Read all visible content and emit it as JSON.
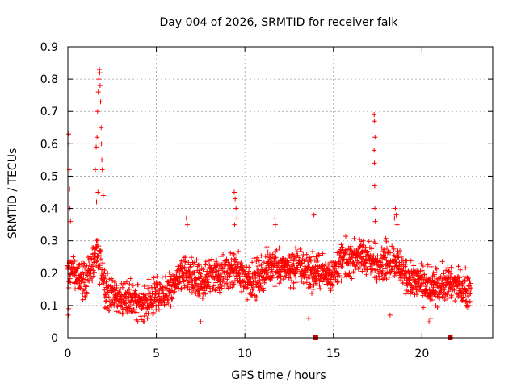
{
  "chart_data": {
    "type": "scatter",
    "title": "Day 004 of 2026, SRMTID for receiver falk",
    "xlabel": "GPS time / hours",
    "ylabel": "SRMTID / TECUs",
    "xlim": [
      0,
      24
    ],
    "ylim": [
      0,
      0.9
    ],
    "xticks": [
      0,
      5,
      10,
      15,
      20
    ],
    "xtick_labels": [
      "0",
      "5",
      "10",
      "15",
      "20"
    ],
    "yticks": [
      0,
      0.1,
      0.2,
      0.3,
      0.4,
      0.5,
      0.6,
      0.7,
      0.8,
      0.9
    ],
    "ytick_labels": [
      "0",
      "0.1",
      "0.2",
      "0.3",
      "0.4",
      "0.5",
      "0.6",
      "0.7",
      "0.8",
      "0.9"
    ],
    "grid": true,
    "marker": "+",
    "series_color": "#ff0000",
    "gap_marker_color": "#cc0000",
    "gap_markers_x": [
      14.0,
      21.6
    ],
    "trend": [
      [
        0.0,
        0.2
      ],
      [
        0.4,
        0.2
      ],
      [
        0.8,
        0.17
      ],
      [
        1.2,
        0.2
      ],
      [
        1.6,
        0.26
      ],
      [
        2.0,
        0.2
      ],
      [
        2.2,
        0.14
      ],
      [
        2.6,
        0.13
      ],
      [
        3.0,
        0.12
      ],
      [
        3.5,
        0.12
      ],
      [
        4.0,
        0.11
      ],
      [
        4.5,
        0.11
      ],
      [
        5.0,
        0.13
      ],
      [
        5.5,
        0.13
      ],
      [
        6.0,
        0.17
      ],
      [
        6.5,
        0.2
      ],
      [
        7.0,
        0.18
      ],
      [
        7.5,
        0.17
      ],
      [
        8.0,
        0.19
      ],
      [
        8.5,
        0.2
      ],
      [
        9.0,
        0.2
      ],
      [
        9.5,
        0.21
      ],
      [
        10.0,
        0.18
      ],
      [
        10.5,
        0.18
      ],
      [
        11.0,
        0.2
      ],
      [
        11.5,
        0.23
      ],
      [
        12.0,
        0.22
      ],
      [
        12.5,
        0.21
      ],
      [
        13.0,
        0.22
      ],
      [
        13.5,
        0.21
      ],
      [
        14.0,
        0.2
      ],
      [
        14.5,
        0.2
      ],
      [
        15.0,
        0.2
      ],
      [
        15.5,
        0.24
      ],
      [
        16.0,
        0.24
      ],
      [
        16.5,
        0.26
      ],
      [
        17.0,
        0.24
      ],
      [
        17.5,
        0.23
      ],
      [
        18.0,
        0.24
      ],
      [
        18.5,
        0.24
      ],
      [
        19.0,
        0.2
      ],
      [
        19.5,
        0.18
      ],
      [
        20.0,
        0.17
      ],
      [
        20.5,
        0.15
      ],
      [
        21.0,
        0.16
      ],
      [
        21.5,
        0.17
      ],
      [
        22.0,
        0.16
      ],
      [
        22.5,
        0.15
      ],
      [
        22.8,
        0.14
      ]
    ],
    "spikes": [
      [
        0.05,
        0.63
      ],
      [
        0.06,
        0.6
      ],
      [
        0.08,
        0.52
      ],
      [
        0.1,
        0.46
      ],
      [
        0.12,
        0.4
      ],
      [
        0.15,
        0.36
      ],
      [
        1.55,
        0.52
      ],
      [
        1.6,
        0.59
      ],
      [
        1.65,
        0.62
      ],
      [
        1.68,
        0.7
      ],
      [
        1.72,
        0.76
      ],
      [
        1.75,
        0.8
      ],
      [
        1.78,
        0.83
      ],
      [
        1.8,
        0.82
      ],
      [
        1.82,
        0.78
      ],
      [
        1.85,
        0.73
      ],
      [
        1.88,
        0.65
      ],
      [
        1.9,
        0.6
      ],
      [
        1.92,
        0.55
      ],
      [
        1.95,
        0.52
      ],
      [
        1.98,
        0.46
      ],
      [
        2.0,
        0.44
      ],
      [
        1.7,
        0.45
      ],
      [
        1.62,
        0.42
      ],
      [
        9.4,
        0.45
      ],
      [
        9.45,
        0.43
      ],
      [
        9.5,
        0.4
      ],
      [
        9.55,
        0.37
      ],
      [
        9.42,
        0.35
      ],
      [
        6.7,
        0.37
      ],
      [
        6.75,
        0.35
      ],
      [
        11.7,
        0.37
      ],
      [
        11.72,
        0.35
      ],
      [
        13.9,
        0.38
      ],
      [
        17.3,
        0.69
      ],
      [
        17.32,
        0.67
      ],
      [
        17.35,
        0.62
      ],
      [
        17.3,
        0.58
      ],
      [
        17.32,
        0.54
      ],
      [
        17.33,
        0.47
      ],
      [
        17.34,
        0.4
      ],
      [
        17.36,
        0.36
      ],
      [
        18.5,
        0.4
      ],
      [
        18.55,
        0.38
      ],
      [
        18.45,
        0.37
      ],
      [
        18.6,
        0.35
      ],
      [
        0.02,
        0.07
      ],
      [
        0.05,
        0.09
      ],
      [
        4.3,
        0.05
      ],
      [
        4.5,
        0.06
      ],
      [
        7.5,
        0.05
      ],
      [
        13.6,
        0.06
      ],
      [
        18.2,
        0.07
      ],
      [
        20.4,
        0.05
      ],
      [
        20.5,
        0.06
      ]
    ]
  }
}
